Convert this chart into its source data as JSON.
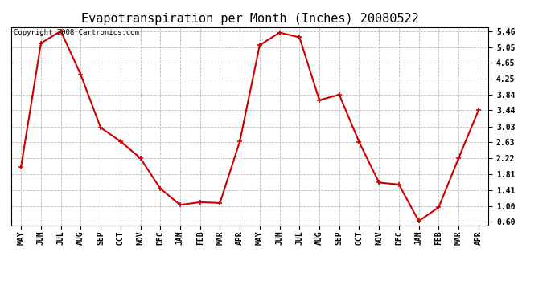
{
  "title": "Evapotranspiration per Month (Inches) 20080522",
  "copyright_text": "Copyright 2008 Cartronics.com",
  "x_labels": [
    "MAY",
    "JUN",
    "JUL",
    "AUG",
    "SEP",
    "OCT",
    "NOV",
    "DEC",
    "JAN",
    "FEB",
    "MAR",
    "APR",
    "MAY",
    "JUN",
    "JUL",
    "AUG",
    "SEP",
    "OCT",
    "NOV",
    "DEC",
    "JAN",
    "FEB",
    "MAR",
    "APR"
  ],
  "y_values": [
    2.0,
    5.15,
    5.46,
    4.35,
    3.0,
    2.65,
    2.22,
    1.45,
    1.03,
    1.1,
    1.08,
    2.65,
    5.1,
    5.42,
    5.3,
    3.7,
    3.84,
    2.63,
    1.6,
    1.55,
    0.62,
    0.97,
    2.22,
    3.44
  ],
  "y_ticks": [
    0.6,
    1.0,
    1.41,
    1.81,
    2.22,
    2.63,
    3.03,
    3.44,
    3.84,
    4.25,
    4.65,
    5.05,
    5.46
  ],
  "line_color": "#cc0000",
  "marker": "+",
  "marker_size": 5,
  "marker_edge_width": 1.2,
  "line_width": 1.5,
  "background_color": "#ffffff",
  "grid_color": "#bbbbbb",
  "title_fontsize": 11,
  "tick_fontsize": 7,
  "copyright_fontsize": 6.5,
  "ylim_min": 0.5,
  "ylim_max": 5.56
}
